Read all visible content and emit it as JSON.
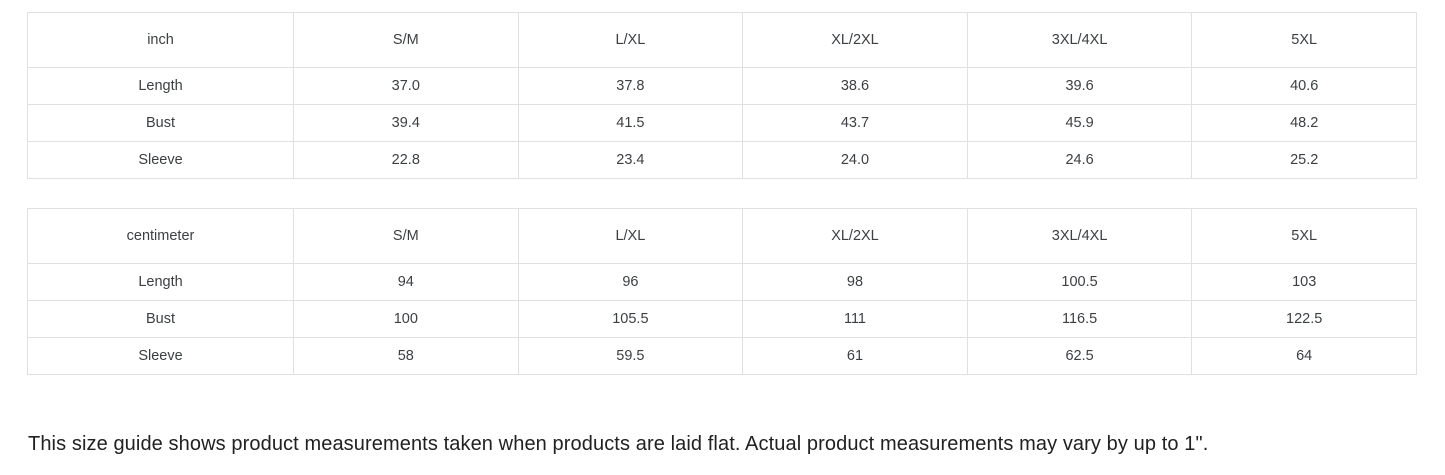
{
  "tables": [
    {
      "unit_label": "inch",
      "sizes": [
        "S/M",
        "L/XL",
        "XL/2XL",
        "3XL/4XL",
        "5XL"
      ],
      "rows": [
        {
          "label": "Length",
          "values": [
            "37.0",
            "37.8",
            "38.6",
            "39.6",
            "40.6"
          ]
        },
        {
          "label": "Bust",
          "values": [
            "39.4",
            "41.5",
            "43.7",
            "45.9",
            "48.2"
          ]
        },
        {
          "label": "Sleeve",
          "values": [
            "22.8",
            "23.4",
            "24.0",
            "24.6",
            "25.2"
          ]
        }
      ]
    },
    {
      "unit_label": "centimeter",
      "sizes": [
        "S/M",
        "L/XL",
        "XL/2XL",
        "3XL/4XL",
        "5XL"
      ],
      "rows": [
        {
          "label": "Length",
          "values": [
            "94",
            "96",
            "98",
            "100.5",
            "103"
          ]
        },
        {
          "label": "Bust",
          "values": [
            "100",
            "105.5",
            "111",
            "116.5",
            "122.5"
          ]
        },
        {
          "label": "Sleeve",
          "values": [
            "58",
            "59.5",
            "61",
            "62.5",
            "64"
          ]
        }
      ]
    }
  ],
  "note": "This size guide shows product measurements taken when products are laid flat. Actual product measurements may vary by up to 1\".",
  "colors": {
    "background": "#ffffff",
    "border": "#e0e0e0",
    "table_text": "#3c4043",
    "note_text": "#212121"
  }
}
